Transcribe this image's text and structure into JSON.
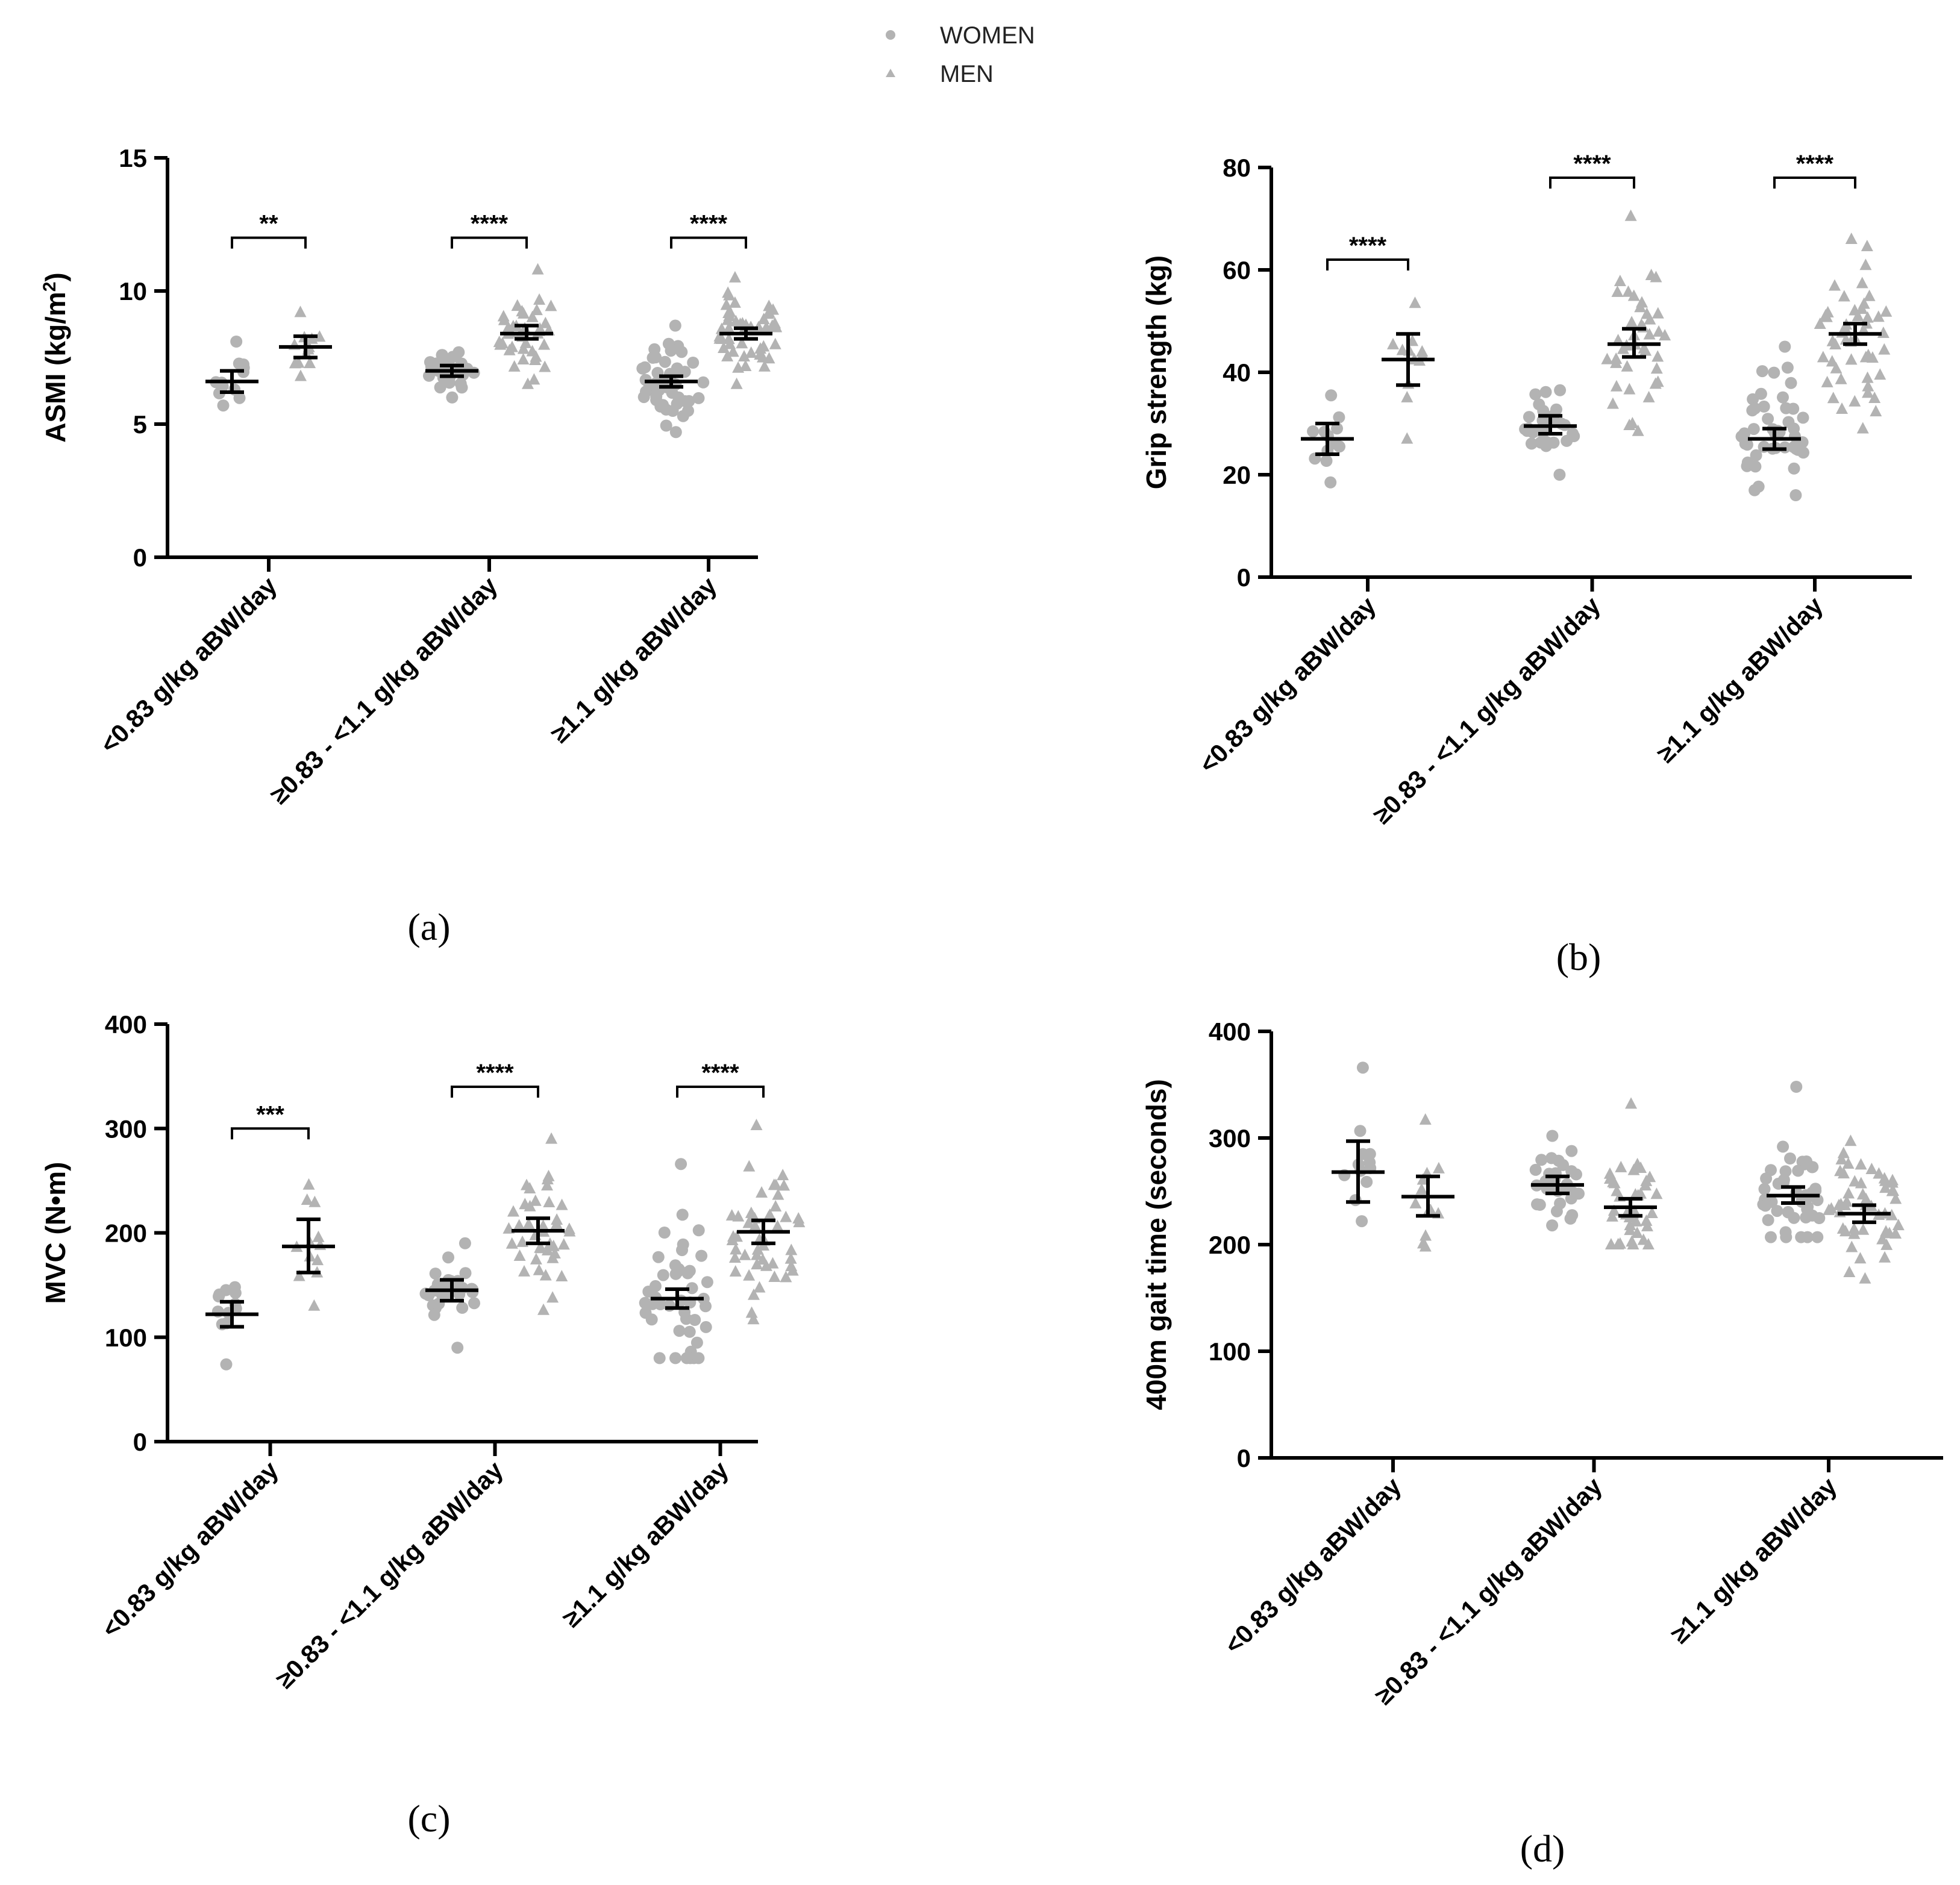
{
  "legend": {
    "women_label": "WOMEN",
    "men_label": "MEN",
    "women_marker": "circle",
    "men_marker": "triangle"
  },
  "colors": {
    "points": "#b3b3b3",
    "axis": "#000000",
    "error_bar": "#000000"
  },
  "chart_data": [
    {
      "type": "scatter",
      "panel_label": "(a)",
      "ylabel_main": "ASMI (kg/m",
      "ylabel_sup": "2",
      "ylabel_end": ")",
      "ylim": [
        0,
        15
      ],
      "yticks": [
        0,
        5,
        10,
        15
      ],
      "yticklabels": [
        "0",
        "5",
        "10",
        "15"
      ],
      "categories": [
        "<0.83 g/kg aBW/day",
        "≥0.83 - <1.1 g/kg aBW/day",
        "≥1.1 g/kg aBW/day"
      ],
      "significance": [
        "**",
        "****",
        "****"
      ],
      "sig_level": 12.0,
      "series": [
        {
          "name": "WOMEN",
          "marker": "circle",
          "mean": [
            6.6,
            7.0,
            6.6
          ],
          "ci_low": [
            6.2,
            6.8,
            6.4
          ],
          "ci_high": [
            7.0,
            7.2,
            6.8
          ],
          "n": [
            12,
            30,
            45
          ],
          "min": [
            5.7,
            6.0,
            4.7
          ],
          "max": [
            8.1,
            7.7,
            8.7
          ]
        },
        {
          "name": "MEN",
          "marker": "triangle",
          "mean": [
            7.9,
            8.4,
            8.4
          ],
          "ci_low": [
            7.5,
            8.2,
            8.2
          ],
          "ci_high": [
            8.3,
            8.7,
            8.6
          ],
          "n": [
            12,
            40,
            50
          ],
          "min": [
            6.8,
            6.5,
            6.5
          ],
          "max": [
            9.2,
            10.8,
            10.5
          ]
        }
      ]
    },
    {
      "type": "scatter",
      "panel_label": "(b)",
      "ylabel_main": "Grip strength (kg)",
      "ylabel_sup": "",
      "ylabel_end": "",
      "ylim": [
        0,
        80
      ],
      "yticks": [
        0,
        20,
        40,
        60,
        80
      ],
      "yticklabels": [
        "0",
        "20",
        "40",
        "60",
        "80"
      ],
      "categories": [
        "<0.83 g/kg aBW/day",
        "≥0.83 - <1.1 g/kg aBW/day",
        "≥1.1 g/kg aBW/day"
      ],
      "significance": [
        "****",
        "****",
        "****"
      ],
      "sig_level": [
        62,
        78,
        78
      ],
      "series": [
        {
          "name": "WOMEN",
          "marker": "circle",
          "mean": [
            27,
            29.5,
            27
          ],
          "ci_low": [
            24,
            28,
            25
          ],
          "ci_high": [
            30,
            31.5,
            29
          ],
          "n": [
            12,
            30,
            45
          ],
          "min": [
            18.5,
            20,
            16
          ],
          "max": [
            35.5,
            36.5,
            45
          ]
        },
        {
          "name": "MEN",
          "marker": "triangle",
          "mean": [
            42.5,
            45.5,
            47.5
          ],
          "ci_low": [
            37.5,
            43,
            45.5
          ],
          "ci_high": [
            47.5,
            48.5,
            49.5
          ],
          "n": [
            12,
            40,
            50
          ],
          "min": [
            27,
            28.5,
            29
          ],
          "max": [
            53.5,
            70.5,
            66
          ]
        }
      ]
    },
    {
      "type": "scatter",
      "panel_label": "(c)",
      "ylabel_main": "MVC (N•m)",
      "ylabel_sup": "",
      "ylabel_end": "",
      "ylim": [
        0,
        400
      ],
      "yticks": [
        0,
        100,
        200,
        300,
        400
      ],
      "yticklabels": [
        "0",
        "100",
        "200",
        "300",
        "400"
      ],
      "categories": [
        "<0.83 g/kg aBW/day",
        "≥0.83 - <1.1 g/kg aBW/day",
        "≥1.1 g/kg aBW/day"
      ],
      "significance": [
        "***",
        "****",
        "****"
      ],
      "sig_level": [
        300,
        340,
        340
      ],
      "series": [
        {
          "name": "WOMEN",
          "marker": "circle",
          "mean": [
            122,
            145,
            137
          ],
          "ci_low": [
            110,
            135,
            128
          ],
          "ci_high": [
            134,
            155,
            146
          ],
          "n": [
            12,
            30,
            45
          ],
          "min": [
            74,
            90,
            80
          ],
          "max": [
            148,
            190,
            266
          ]
        },
        {
          "name": "MEN",
          "marker": "triangle",
          "mean": [
            187,
            202,
            201
          ],
          "ci_low": [
            162,
            190,
            190
          ],
          "ci_high": [
            213,
            214,
            212
          ],
          "n": [
            12,
            40,
            50
          ],
          "min": [
            130,
            126,
            117
          ],
          "max": [
            246,
            290,
            303
          ]
        }
      ]
    },
    {
      "type": "scatter",
      "panel_label": "(d)",
      "ylabel_main": "400m gait time (seconds)",
      "ylabel_sup": "",
      "ylabel_end": "",
      "ylim": [
        0,
        400
      ],
      "yticks": [
        0,
        100,
        200,
        300,
        400
      ],
      "yticklabels": [
        "0",
        "100",
        "200",
        "300",
        "400"
      ],
      "categories": [
        "<0.83 g/kg aBW/day",
        "≥0.83 - <1.1 g/kg aBW/day",
        "≥1.1 g/kg aBW/day"
      ],
      "significance": [
        "",
        "",
        ""
      ],
      "sig_level": 0,
      "series": [
        {
          "name": "WOMEN",
          "marker": "circle",
          "mean": [
            268,
            256,
            246
          ],
          "ci_low": [
            240,
            248,
            239
          ],
          "ci_high": [
            297,
            264,
            254
          ],
          "n": [
            12,
            30,
            45
          ],
          "min": [
            222,
            218,
            207
          ],
          "max": [
            366,
            302,
            348
          ]
        },
        {
          "name": "MEN",
          "marker": "triangle",
          "mean": [
            245,
            235,
            229
          ],
          "ci_low": [
            227,
            227,
            221
          ],
          "ci_high": [
            264,
            243,
            237
          ],
          "n": [
            12,
            40,
            50
          ],
          "min": [
            198,
            200,
            168
          ],
          "max": [
            317,
            332,
            297
          ]
        }
      ]
    }
  ]
}
